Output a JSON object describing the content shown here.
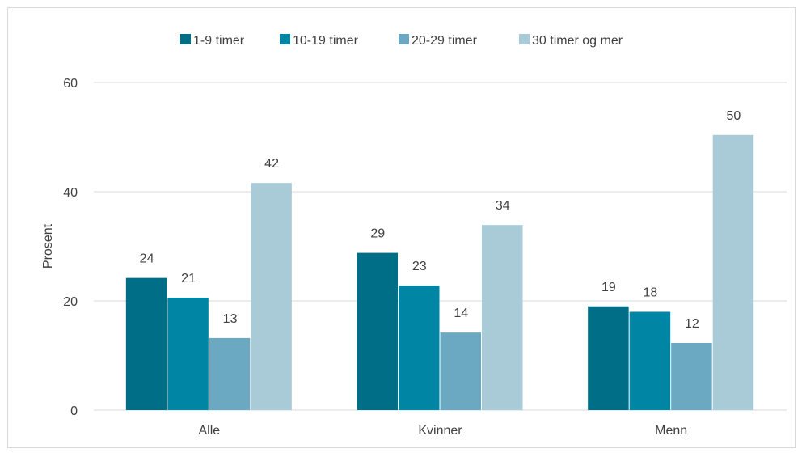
{
  "chart_data": {
    "type": "bar",
    "title": "",
    "xlabel": "",
    "ylabel": "Prosent",
    "ylim": [
      0,
      60
    ],
    "yticks": [
      0,
      20,
      40,
      60
    ],
    "grid": true,
    "legend_position": "top",
    "categories": [
      "Alle",
      "Kvinner",
      "Menn"
    ],
    "series": [
      {
        "name": "1-9 timer",
        "color": "#006e87",
        "values": [
          24,
          29,
          19
        ],
        "heights": [
          24.2,
          28.8,
          19.0
        ]
      },
      {
        "name": "10-19 timer",
        "color": "#0086a5",
        "values": [
          21,
          23,
          18
        ],
        "heights": [
          20.6,
          22.8,
          18.0
        ]
      },
      {
        "name": "20-29 timer",
        "color": "#6aa9c1",
        "values": [
          13,
          14,
          12
        ],
        "heights": [
          13.2,
          14.2,
          12.3
        ]
      },
      {
        "name": "30 timer og mer",
        "color": "#a9cbd8",
        "values": [
          42,
          34,
          50
        ],
        "heights": [
          41.6,
          33.9,
          50.4
        ]
      }
    ]
  }
}
